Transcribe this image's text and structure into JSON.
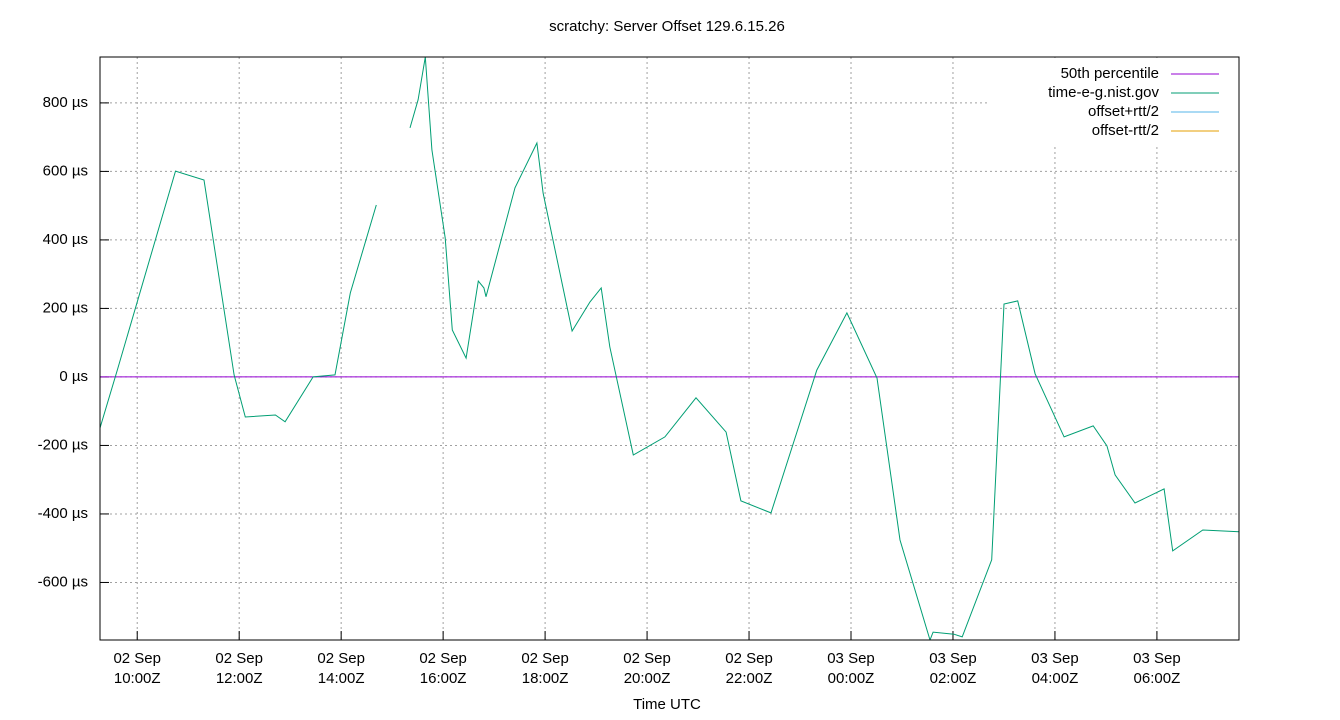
{
  "chart_data": {
    "type": "line",
    "title": "scratchy: Server Offset 129.6.15.26",
    "x_label": "Time UTC",
    "xlim": [
      9.27,
      31.61
    ],
    "ylim": [
      -768,
      934
    ],
    "grid": true,
    "legend": "top right",
    "xticks": [
      {
        "value": 10,
        "label": "02 Sep 10:00Z"
      },
      {
        "value": 12,
        "label": "02 Sep 12:00Z"
      },
      {
        "value": 14,
        "label": "02 Sep 14:00Z"
      },
      {
        "value": 16,
        "label": "02 Sep 16:00Z"
      },
      {
        "value": 18,
        "label": "02 Sep 18:00Z"
      },
      {
        "value": 20,
        "label": "02 Sep 20:00Z"
      },
      {
        "value": 22,
        "label": "02 Sep 22:00Z"
      },
      {
        "value": 24,
        "label": "03 Sep 00:00Z"
      },
      {
        "value": 26,
        "label": "03 Sep 02:00Z"
      },
      {
        "value": 28,
        "label": "03 Sep 04:00Z"
      },
      {
        "value": 30,
        "label": "03 Sep 06:00Z"
      }
    ],
    "yticks": [
      {
        "value": -600,
        "label": "-600 µs"
      },
      {
        "value": -400,
        "label": "-400 µs"
      },
      {
        "value": -200,
        "label": "-200 µs"
      },
      {
        "value": 0,
        "label": "0 µs"
      },
      {
        "value": 200,
        "label": "200 µs"
      },
      {
        "value": 400,
        "label": "400 µs"
      },
      {
        "value": 600,
        "label": "600 µs"
      },
      {
        "value": 800,
        "label": "800 µs"
      }
    ],
    "x": [
      9.27,
      9.61,
      10.75,
      11.31,
      11.9,
      12.12,
      12.71,
      12.9,
      13.45,
      13.88,
      14.18,
      14.69,
      15.0,
      15.35,
      15.51,
      15.65,
      15.78,
      16.04,
      16.18,
      16.45,
      16.69,
      16.8,
      16.84,
      17.41,
      17.84,
      17.96,
      18.53,
      18.88,
      19.1,
      19.27,
      19.73,
      20.35,
      20.96,
      21.55,
      21.84,
      22.43,
      23.33,
      23.92,
      24.51,
      24.96,
      25.55,
      25.61,
      26.02,
      26.18,
      26.76,
      27.0,
      27.27,
      27.61,
      28.18,
      28.75,
      29.02,
      29.18,
      29.57,
      30.14,
      30.31,
      30.9,
      31.61
    ],
    "series": [
      {
        "name": "50th percentile",
        "color": "#9400d3",
        "value": 0
      },
      {
        "name": "time-e-g.nist.gov",
        "color": "#009e73",
        "values": [
          -149,
          20,
          601,
          575,
          6,
          -117,
          -111,
          -131,
          0,
          6,
          245,
          502,
          null,
          727,
          809,
          934,
          663,
          406,
          137,
          55,
          280,
          260,
          234,
          552,
          683,
          537,
          134,
          219,
          260,
          88,
          -228,
          -175,
          -61,
          -161,
          -362,
          -397,
          20,
          187,
          -3,
          -476,
          -768,
          -745,
          -751,
          -759,
          -534,
          213,
          222,
          9,
          -175,
          -143,
          -201,
          -286,
          -368,
          -327,
          -508,
          -447,
          -452
        ]
      },
      {
        "name": "offset+rtt/2",
        "color": "#56b4e9"
      },
      {
        "name": "offset-rtt/2",
        "color": "#e69f00"
      }
    ]
  }
}
